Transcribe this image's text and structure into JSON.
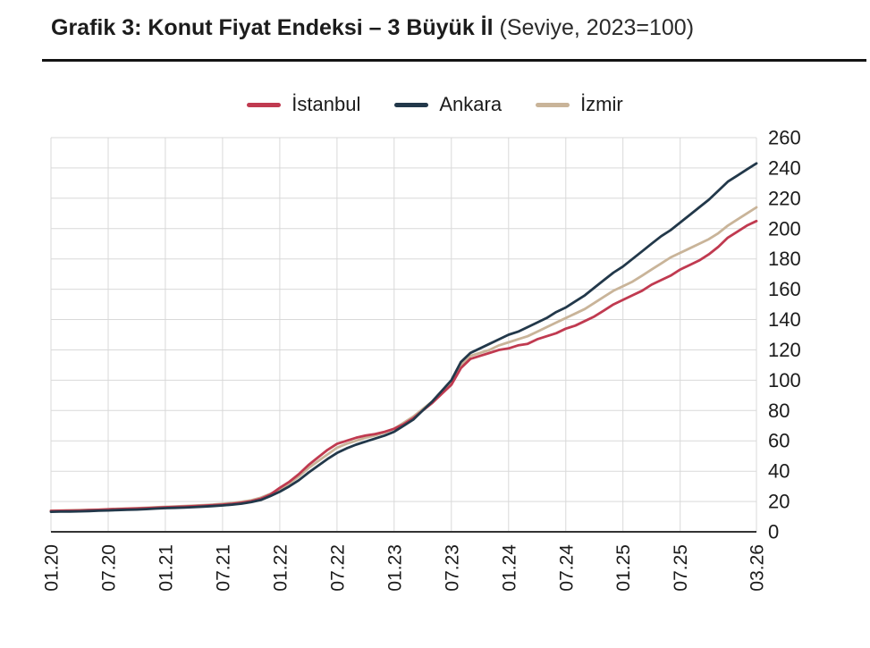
{
  "title": {
    "bold": "Grafik 3: Konut Fiyat Endeksi – 3 Büyük İl",
    "normal": "(Seviye, 2023=100)"
  },
  "colors": {
    "background": "#ffffff",
    "text": "#1b1b1b",
    "grid": "#d9d9d9",
    "axis": "#333333",
    "rule": "#141414"
  },
  "chart_data": {
    "type": "line",
    "title": "Grafik 3: Konut Fiyat Endeksi – 3 Büyük İl (Seviye, 2023=100)",
    "x_unit": "month",
    "x_start": "01.2020",
    "x_end": "03.2026",
    "x_tick_labels": [
      "01.20",
      "07.20",
      "01.21",
      "07.21",
      "01.22",
      "07.22",
      "01.23",
      "07.23",
      "01.24",
      "07.24",
      "01.25",
      "07.25",
      "03.26"
    ],
    "x_tick_month_index": [
      0,
      6,
      12,
      18,
      24,
      30,
      36,
      42,
      48,
      54,
      60,
      66,
      74
    ],
    "ylim": [
      0,
      260
    ],
    "y_tick_step": 20,
    "grid": true,
    "legend_position": "top-center",
    "draw_order": [
      2,
      0,
      1
    ],
    "series": [
      {
        "name": "İstanbul",
        "color": "#c03a50",
        "values": [
          13.8,
          13.9,
          14.0,
          14.1,
          14.3,
          14.5,
          14.8,
          15.0,
          15.2,
          15.4,
          15.6,
          15.9,
          16.2,
          16.4,
          16.6,
          16.9,
          17.2,
          17.6,
          18.0,
          18.5,
          19.2,
          20.2,
          21.8,
          24.5,
          29,
          33,
          38,
          44,
          49,
          54,
          58,
          60,
          62,
          63.5,
          64.5,
          66,
          68,
          71,
          75,
          80,
          85,
          91,
          97,
          108,
          114,
          116,
          118,
          120,
          121,
          123,
          124,
          127,
          129,
          131,
          134,
          136,
          139,
          142,
          146,
          150,
          153,
          156,
          159,
          163,
          166,
          169,
          173,
          176,
          179,
          183,
          188,
          194,
          198,
          202,
          205
        ]
      },
      {
        "name": "Ankara",
        "color": "#22384a",
        "values": [
          13.2,
          13.3,
          13.4,
          13.5,
          13.7,
          13.9,
          14.1,
          14.3,
          14.5,
          14.7,
          15.0,
          15.3,
          15.6,
          15.8,
          16.0,
          16.3,
          16.6,
          17.0,
          17.4,
          17.9,
          18.6,
          19.6,
          21.0,
          23.5,
          26.5,
          30,
          34,
          39,
          43.5,
          48,
          52,
          55,
          57.5,
          59.5,
          61.5,
          63.5,
          66,
          70,
          74,
          80,
          86,
          93,
          100,
          112,
          118,
          121,
          124,
          127,
          130,
          132,
          135,
          138,
          141,
          145,
          148,
          152,
          156,
          161,
          166,
          171,
          175,
          180,
          185,
          190,
          195,
          199,
          204,
          209,
          214,
          219,
          225,
          231,
          235,
          239,
          243
        ]
      },
      {
        "name": "İzmir",
        "color": "#c9b499",
        "values": [
          14.0,
          14.1,
          14.2,
          14.3,
          14.5,
          14.7,
          15.0,
          15.2,
          15.4,
          15.6,
          15.9,
          16.2,
          16.5,
          16.7,
          17.0,
          17.3,
          17.6,
          18.0,
          18.5,
          19.0,
          19.8,
          20.8,
          22.5,
          25.0,
          28,
          32,
          36.5,
          42,
          46.5,
          51,
          55.5,
          58,
          60,
          62,
          63.5,
          65.5,
          68,
          72,
          76,
          81,
          86,
          92,
          98,
          110,
          116,
          118,
          120,
          123,
          125,
          127,
          129,
          132,
          135,
          138,
          141,
          144,
          147,
          151,
          155,
          159,
          162,
          165,
          169,
          173,
          177,
          181,
          184,
          187,
          190,
          193,
          197,
          202,
          206,
          210,
          214
        ]
      }
    ]
  }
}
